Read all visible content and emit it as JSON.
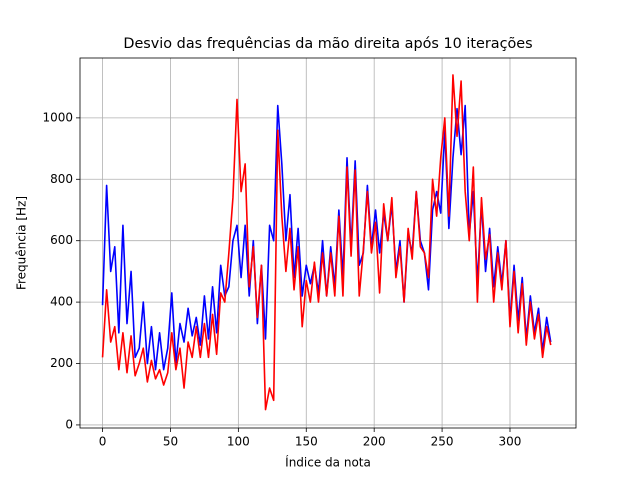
{
  "chart_data": {
    "type": "line",
    "title": "Desvio das frequências da mão direita após 10 iterações",
    "xlabel": "Índice da nota",
    "ylabel": "Frequência [Hz]",
    "x": [
      0,
      3,
      6,
      9,
      12,
      15,
      18,
      21,
      24,
      27,
      30,
      33,
      36,
      39,
      42,
      45,
      48,
      51,
      54,
      57,
      60,
      63,
      66,
      69,
      72,
      75,
      78,
      81,
      84,
      87,
      90,
      93,
      96,
      99,
      102,
      105,
      108,
      111,
      114,
      117,
      120,
      123,
      126,
      129,
      132,
      135,
      138,
      141,
      144,
      147,
      150,
      153,
      156,
      159,
      162,
      165,
      168,
      171,
      174,
      177,
      180,
      183,
      186,
      189,
      192,
      195,
      198,
      201,
      204,
      207,
      210,
      213,
      216,
      219,
      222,
      225,
      228,
      231,
      234,
      237,
      240,
      243,
      246,
      249,
      252,
      255,
      258,
      261,
      264,
      267,
      270,
      273,
      276,
      279,
      282,
      285,
      288,
      291,
      294,
      297,
      300,
      303,
      306,
      309,
      312,
      315,
      318,
      321,
      324,
      327,
      330
    ],
    "series": [
      {
        "color": "#0000ff",
        "values": [
          390,
          780,
          500,
          580,
          300,
          650,
          330,
          500,
          220,
          250,
          400,
          200,
          320,
          180,
          300,
          180,
          250,
          430,
          200,
          330,
          270,
          380,
          290,
          350,
          260,
          420,
          280,
          450,
          300,
          520,
          420,
          450,
          600,
          650,
          480,
          650,
          420,
          600,
          330,
          520,
          280,
          650,
          600,
          1040,
          850,
          600,
          750,
          480,
          640,
          420,
          520,
          460,
          520,
          430,
          600,
          420,
          580,
          450,
          700,
          480,
          870,
          580,
          860,
          520,
          560,
          780,
          580,
          700,
          560,
          690,
          600,
          720,
          500,
          600,
          400,
          620,
          560,
          760,
          600,
          560,
          440,
          700,
          760,
          690,
          960,
          640,
          870,
          1030,
          880,
          1040,
          620,
          760,
          460,
          720,
          500,
          640,
          450,
          580,
          460,
          600,
          340,
          520,
          340,
          480,
          280,
          420,
          300,
          380,
          240,
          350,
          270
        ]
      },
      {
        "color": "#ff0000",
        "values": [
          220,
          440,
          270,
          320,
          180,
          300,
          170,
          290,
          160,
          200,
          250,
          140,
          210,
          150,
          180,
          130,
          170,
          300,
          180,
          250,
          120,
          270,
          220,
          320,
          220,
          330,
          220,
          360,
          230,
          430,
          400,
          560,
          740,
          1060,
          760,
          850,
          450,
          580,
          350,
          520,
          50,
          120,
          80,
          960,
          680,
          500,
          640,
          440,
          580,
          320,
          470,
          400,
          530,
          400,
          560,
          420,
          560,
          420,
          680,
          420,
          840,
          550,
          830,
          420,
          570,
          760,
          560,
          660,
          430,
          720,
          600,
          740,
          480,
          580,
          400,
          640,
          540,
          760,
          580,
          560,
          480,
          800,
          680,
          870,
          1000,
          680,
          1140,
          940,
          1120,
          760,
          600,
          840,
          400,
          740,
          540,
          620,
          400,
          560,
          440,
          600,
          320,
          500,
          300,
          460,
          260,
          400,
          280,
          360,
          220,
          320,
          260
        ]
      }
    ],
    "xlim": [
      -16.6,
      348.6
    ],
    "ylim": [
      -10,
      1195
    ],
    "xticks": [
      0,
      50,
      100,
      150,
      200,
      250,
      300
    ],
    "yticks": [
      0,
      200,
      400,
      600,
      800,
      1000
    ],
    "grid": true
  }
}
